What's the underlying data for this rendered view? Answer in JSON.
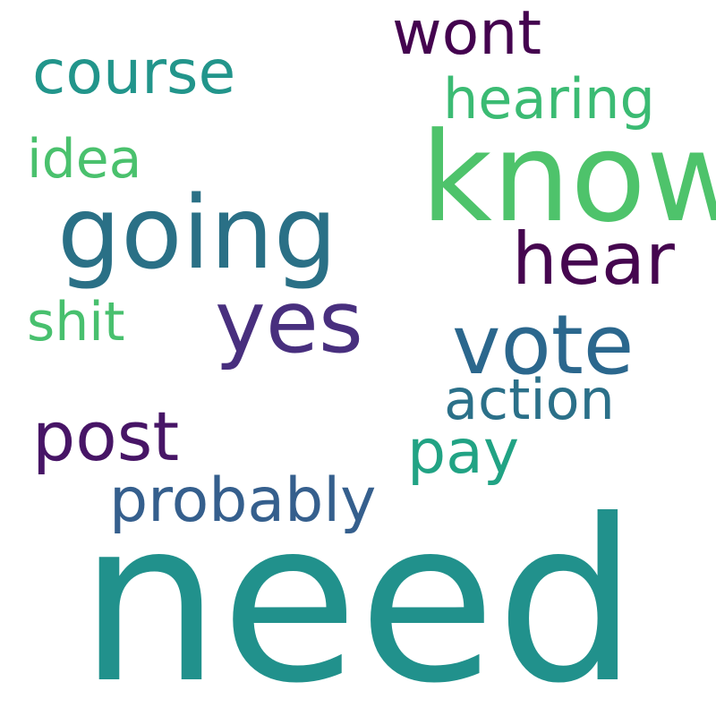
{
  "words": [
    {
      "text": "need",
      "color": "#21918c"
    },
    {
      "text": "know",
      "color": "#4ec36b"
    },
    {
      "text": "going",
      "color": "#2a7086"
    },
    {
      "text": "yes",
      "color": "#482f7e"
    },
    {
      "text": "vote",
      "color": "#2b678d"
    },
    {
      "text": "hear",
      "color": "#45064f"
    },
    {
      "text": "post",
      "color": "#471566"
    },
    {
      "text": "course",
      "color": "#22958b"
    },
    {
      "text": "wont",
      "color": "#44034f"
    },
    {
      "text": "probably",
      "color": "#355f8d"
    },
    {
      "text": "pay",
      "color": "#21a384"
    },
    {
      "text": "hearing",
      "color": "#3bbb73"
    },
    {
      "text": "action",
      "color": "#2b7089"
    },
    {
      "text": "idea",
      "color": "#4ac16d"
    },
    {
      "text": "shit",
      "color": "#48c06e"
    }
  ]
}
